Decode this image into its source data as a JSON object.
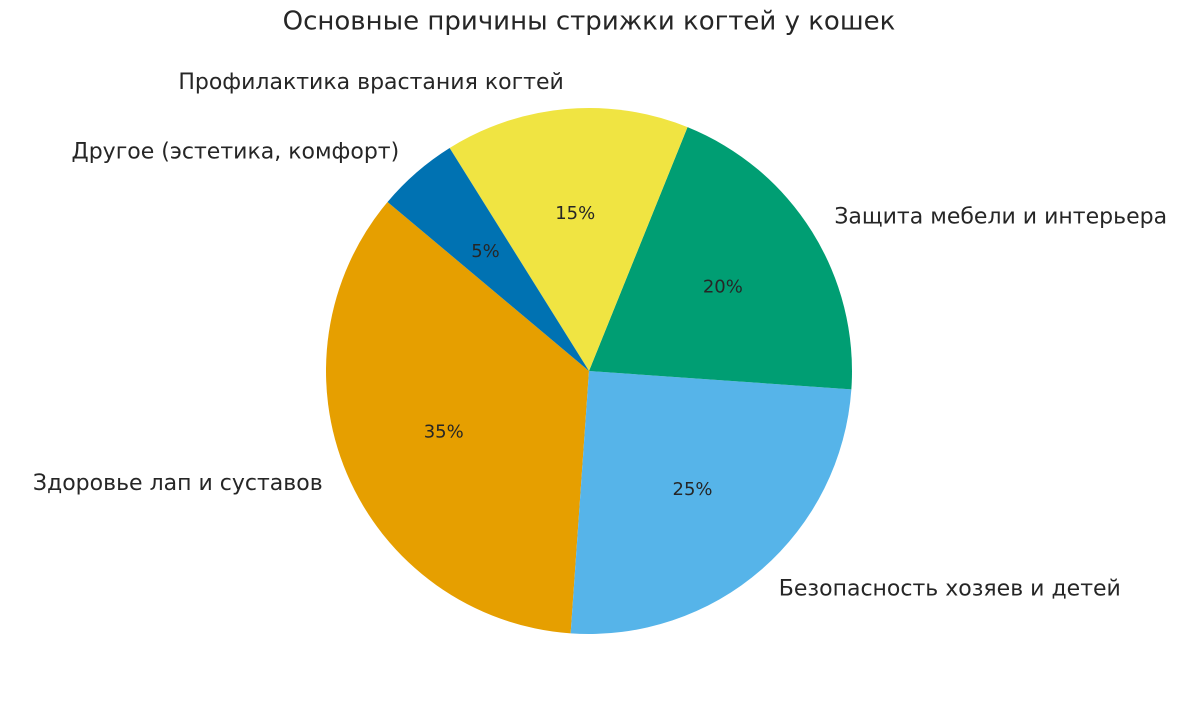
{
  "chart_data": {
    "type": "pie",
    "title": "Основные причины стрижки когтей у кошек",
    "categories": [
      "Здоровье лап и суставов",
      "Безопасность хозяев и детей",
      "Защита мебели и интерьера",
      "Профилактика врастания когтей",
      "Другое (эстетика, комфорт)"
    ],
    "values": [
      35,
      25,
      20,
      15,
      5
    ],
    "value_labels": [
      "35%",
      "25%",
      "20%",
      "15%",
      "5%"
    ],
    "colors": [
      "#E69F00",
      "#56B4E9",
      "#009E73",
      "#F0E442",
      "#0072B2"
    ],
    "startangle": 140
  }
}
